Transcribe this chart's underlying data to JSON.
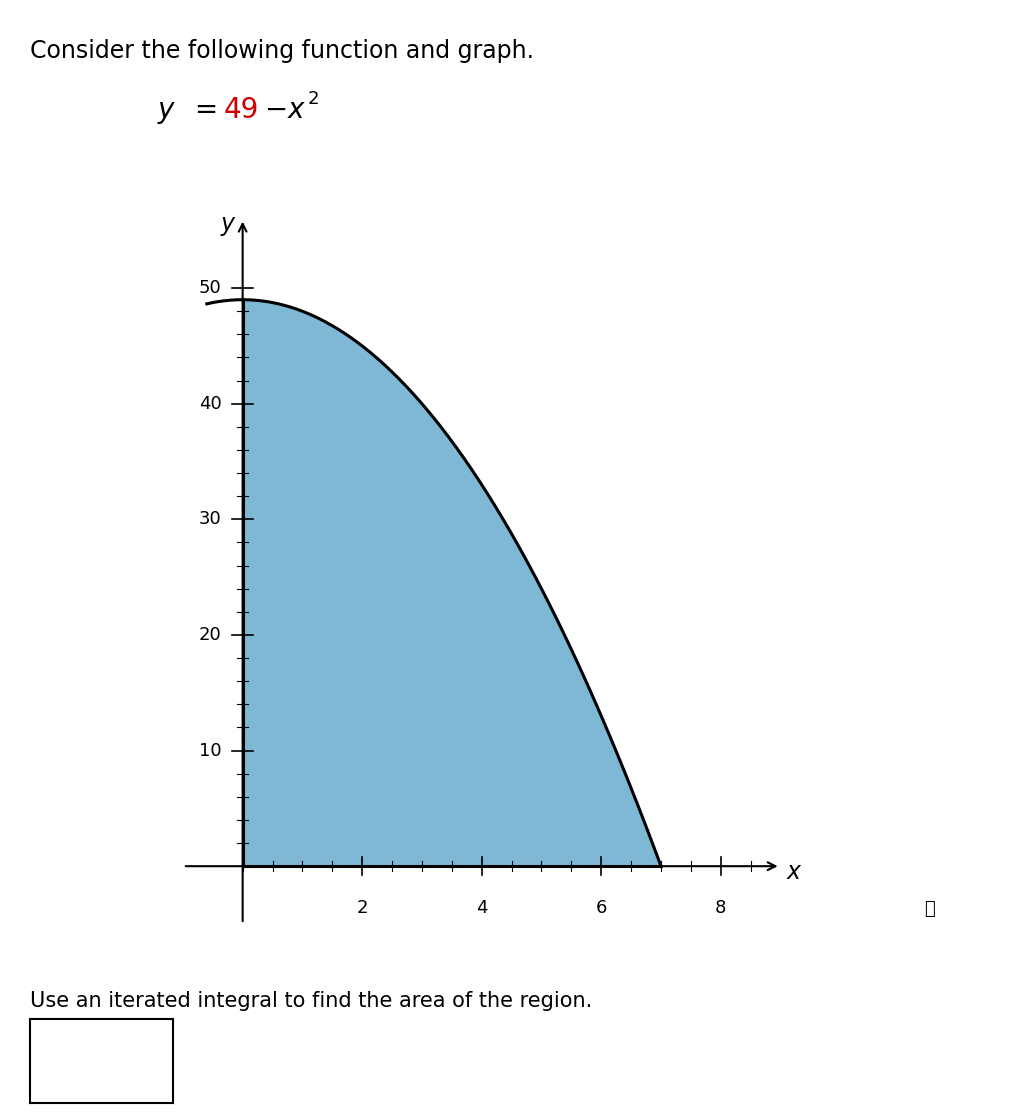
{
  "title_text": "Consider the following function and graph.",
  "fill_color": "#7EB8D4",
  "curve_color": "#000000",
  "curve_linewidth": 2.2,
  "x_min": 0,
  "x_max": 7,
  "y_min": 0,
  "y_max": 49,
  "x_ticks": [
    2,
    4,
    6,
    8
  ],
  "y_ticks": [
    10,
    20,
    30,
    40,
    50
  ],
  "xlabel": "x",
  "ylabel": "y",
  "bottom_text": "Use an iterated integral to find the area of the region.",
  "background_color": "#ffffff",
  "tick_fontsize": 13,
  "label_fontsize": 15,
  "title_fontsize": 17,
  "bottom_fontsize": 15
}
